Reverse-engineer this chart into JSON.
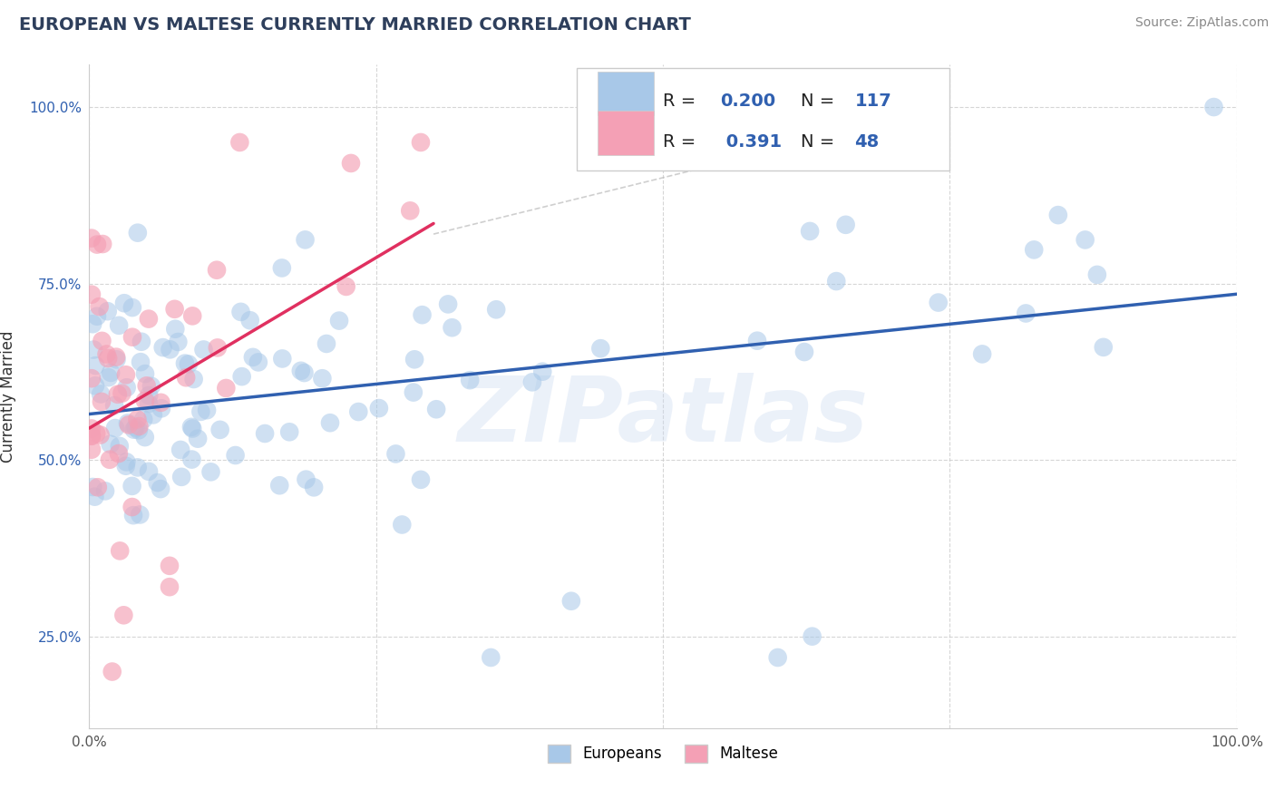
{
  "title": "EUROPEAN VS MALTESE CURRENTLY MARRIED CORRELATION CHART",
  "source": "Source: ZipAtlas.com",
  "ylabel": "Currently Married",
  "xlim": [
    0.0,
    1.0
  ],
  "ylim": [
    0.12,
    1.06
  ],
  "yticks": [
    0.25,
    0.5,
    0.75,
    1.0
  ],
  "ytick_labels": [
    "25.0%",
    "50.0%",
    "75.0%",
    "100.0%"
  ],
  "xticks": [
    0.0,
    0.25,
    0.5,
    0.75,
    1.0
  ],
  "xtick_labels": [
    "0.0%",
    "",
    "",
    "",
    "100.0%"
  ],
  "blue_color": "#a8c8e8",
  "pink_color": "#f4a0b5",
  "blue_line_color": "#3060b0",
  "pink_line_color": "#e03060",
  "title_color": "#2e3f5c",
  "source_color": "#888888",
  "background_color": "#ffffff",
  "grid_color": "#cccccc",
  "watermark_color": "#c8d8f0",
  "watermark_text": "ZIPatlas",
  "blue_R": 0.2,
  "pink_R": 0.391,
  "blue_N": 117,
  "pink_N": 48
}
